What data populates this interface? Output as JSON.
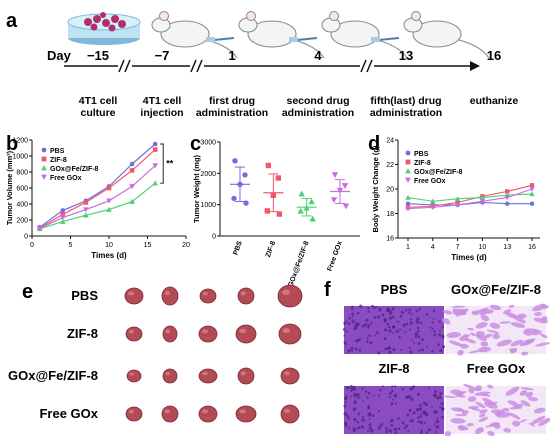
{
  "panel_letters": {
    "a": "a",
    "b": "b",
    "c": "c",
    "d": "d",
    "e": "e",
    "f": "f"
  },
  "timeline": {
    "day_label": "Day",
    "days": [
      "−15",
      "−7",
      "1",
      "4",
      "13",
      "16"
    ],
    "events": [
      [
        "4T1 cell",
        "culture"
      ],
      [
        "4T1 cell",
        "injection"
      ],
      [
        "first drug",
        "administration"
      ],
      [
        "second drug",
        "administration"
      ],
      [
        "fifth(last) drug",
        "administration"
      ],
      [
        "euthanize"
      ]
    ]
  },
  "groups": [
    "PBS",
    "ZIF-8",
    "GOx@Fe/ZIF-8",
    "Free GOx"
  ],
  "colors": {
    "PBS": "#6f6fe0",
    "ZIF-8": "#ee5a6a",
    "GOx@Fe/ZIF-8": "#4fcf73",
    "Free GOx": "#c66ee0",
    "tumor": "#b34a55",
    "tissue_dense": "#8a4cc0",
    "tissue_light": "#c98fe2",
    "mouse": "#f4f4f4",
    "dish": "#9ed3ee"
  },
  "significance_label": "**",
  "chart_data": [
    {
      "panel": "b",
      "type": "line",
      "xlabel": "Times (d)",
      "ylabel": "Tumor Volume (mm³)",
      "xlim": [
        0,
        20
      ],
      "ylim": [
        0,
        1200
      ],
      "xticks": [
        0,
        5,
        10,
        15,
        20
      ],
      "yticks": [
        0,
        200,
        400,
        600,
        800,
        1000,
        1200
      ],
      "x": [
        1,
        4,
        7,
        10,
        13,
        16
      ],
      "series": [
        {
          "name": "PBS",
          "values": [
            110,
            320,
            440,
            620,
            900,
            1150
          ]
        },
        {
          "name": "ZIF-8",
          "values": [
            100,
            270,
            420,
            600,
            820,
            1080
          ]
        },
        {
          "name": "GOx@Fe/ZIF-8",
          "values": [
            90,
            180,
            260,
            330,
            430,
            660
          ]
        },
        {
          "name": "Free GOx",
          "values": [
            95,
            230,
            330,
            440,
            620,
            880
          ]
        }
      ]
    },
    {
      "panel": "c",
      "type": "scatter",
      "ylabel": "Tumor Weight (mg)",
      "ylim": [
        0,
        3000
      ],
      "yticks": [
        0,
        1000,
        2000,
        3000
      ],
      "categories": [
        "PBS",
        "ZIF-8",
        "GOx@Fe/ZIF-8",
        "Free GOx"
      ],
      "series": [
        {
          "name": "PBS",
          "points": [
            2400,
            1950,
            1650,
            1200,
            1050
          ],
          "mean": 1650,
          "sd": 550
        },
        {
          "name": "ZIF-8",
          "points": [
            2250,
            1850,
            1300,
            800,
            700
          ],
          "mean": 1380,
          "sd": 600
        },
        {
          "name": "GOx@Fe/ZIF-8",
          "points": [
            1350,
            1100,
            900,
            800,
            550
          ],
          "mean": 920,
          "sd": 280
        },
        {
          "name": "Free GOx",
          "points": [
            1950,
            1600,
            1450,
            1150,
            950
          ],
          "mean": 1420,
          "sd": 380
        }
      ]
    },
    {
      "panel": "d",
      "type": "line",
      "xlabel": "Times (d)",
      "ylabel": "Body Weight Change (g)",
      "ylim": [
        16,
        24
      ],
      "yticks": [
        16,
        18,
        20,
        22,
        24
      ],
      "categories": [
        "1",
        "4",
        "7",
        "10",
        "13",
        "16"
      ],
      "series": [
        {
          "name": "PBS",
          "values": [
            18.8,
            18.7,
            18.7,
            18.9,
            18.8,
            18.8
          ]
        },
        {
          "name": "ZIF-8",
          "values": [
            18.5,
            18.6,
            18.9,
            19.4,
            19.8,
            20.3
          ]
        },
        {
          "name": "GOx@Fe/ZIF-8",
          "values": [
            19.3,
            19.0,
            19.2,
            19.3,
            19.5,
            19.6
          ]
        },
        {
          "name": "Free GOx",
          "values": [
            18.4,
            18.5,
            18.7,
            19.0,
            19.3,
            20.0
          ]
        }
      ]
    }
  ],
  "panel_e": {
    "row_labels": [
      "PBS",
      "ZIF-8",
      "GOx@Fe/ZIF-8",
      "Free GOx"
    ]
  },
  "panel_f": {
    "labels": [
      "PBS",
      "GOx@Fe/ZIF-8",
      "ZIF-8",
      "Free GOx"
    ]
  }
}
